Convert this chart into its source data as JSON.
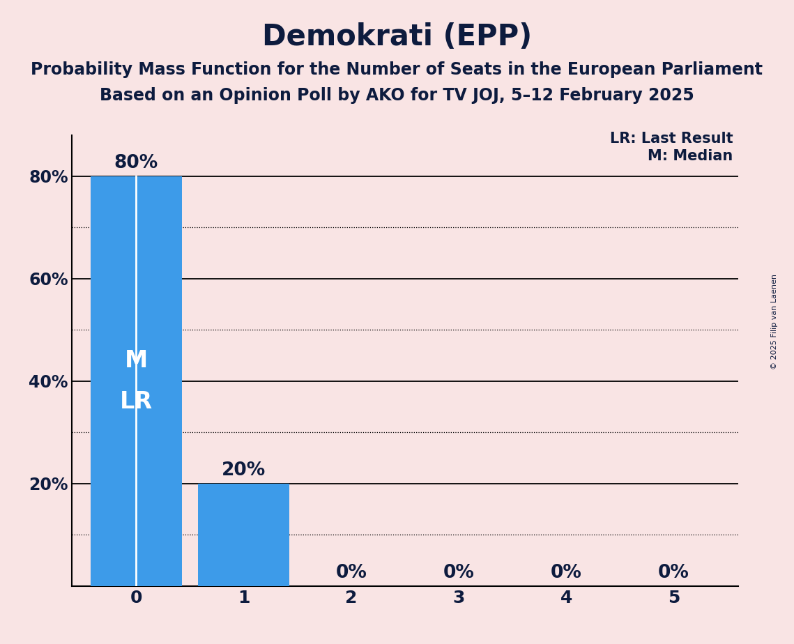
{
  "title": "Demokrati (EPP)",
  "subtitle1": "Probability Mass Function for the Number of Seats in the European Parliament",
  "subtitle2": "Based on an Opinion Poll by AKO for TV JOJ, 5–12 February 2025",
  "copyright": "© 2025 Filip van Laenen",
  "categories": [
    0,
    1,
    2,
    3,
    4,
    5
  ],
  "values": [
    0.8,
    0.2,
    0.0,
    0.0,
    0.0,
    0.0
  ],
  "bar_color": "#3d9be9",
  "background_color": "#f9e4e4",
  "text_color": "#0d1b3e",
  "bar_label_color_outside": "#0d1b3e",
  "median": 0,
  "last_result": 0,
  "ylim": [
    0,
    0.88
  ],
  "yticks": [
    0.0,
    0.2,
    0.4,
    0.6,
    0.8
  ],
  "ytick_labels": [
    "",
    "20%",
    "40%",
    "60%",
    "80%"
  ],
  "solid_gridlines": [
    0.2,
    0.4,
    0.6,
    0.8
  ],
  "dotted_gridlines": [
    0.1,
    0.3,
    0.5,
    0.7
  ],
  "legend_lr": "LR: Last Result",
  "legend_m": "M: Median",
  "title_fontsize": 30,
  "subtitle_fontsize": 17,
  "bar_label_fontsize": 19,
  "axis_tick_fontsize": 17,
  "legend_fontsize": 15
}
